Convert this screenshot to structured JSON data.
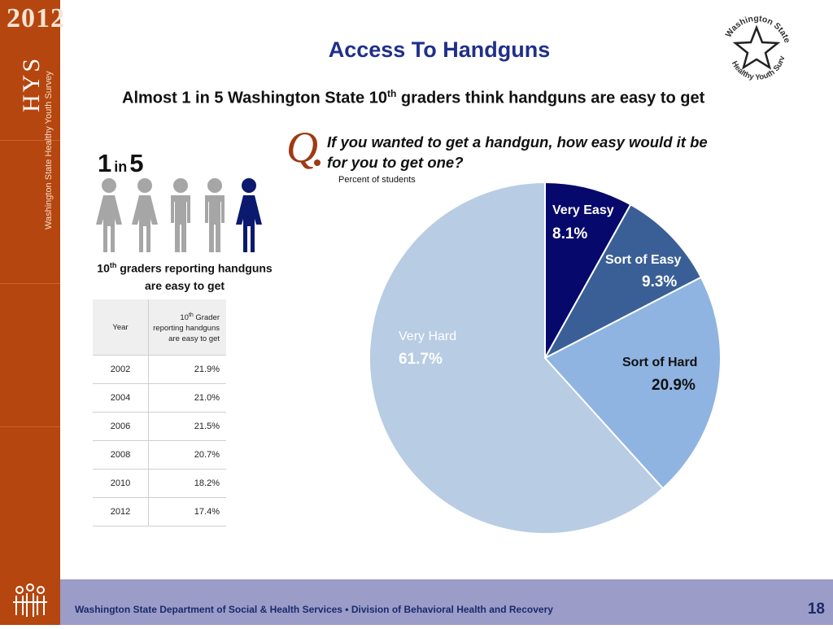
{
  "sidebar": {
    "year": "2012",
    "acronym": "HYS",
    "survey_name": "Washington State Healthy Youth Survey"
  },
  "title": "Access To Handguns",
  "subtitle": {
    "before": "Almost 1 in 5 Washington State 10",
    "sup": "th",
    "after": " graders think handguns are easy to get"
  },
  "question": {
    "mark": "Q",
    "text": "If you wanted to get a handgun, how easy would it be for you to get one?",
    "note": "Percent of students"
  },
  "infographic": {
    "one": "1",
    "in": "in",
    "five": "5",
    "caption_num": "10",
    "caption_sup": "th",
    "caption_rest": " graders reporting handguns are easy to get",
    "colors": {
      "gray": "#a6a6a6",
      "highlight": "#0b1a6e"
    }
  },
  "table": {
    "col_year": "Year",
    "col_value_pre": "10",
    "col_value_sup": "th",
    "col_value_rest": " Grader reporting handguns are easy to get",
    "rows": [
      {
        "year": "2002",
        "value": "21.9%"
      },
      {
        "year": "2004",
        "value": "21.0%"
      },
      {
        "year": "2006",
        "value": "21.5%"
      },
      {
        "year": "2008",
        "value": "20.7%"
      },
      {
        "year": "2010",
        "value": "18.2%"
      },
      {
        "year": "2012",
        "value": "17.4%"
      }
    ]
  },
  "badge": {
    "line1": "Washington State",
    "line2": "Healthy Youth Survey"
  },
  "chart_data": {
    "type": "pie",
    "slices": [
      {
        "label": "Very Easy",
        "value": 8.1,
        "display": "8.1%",
        "color": "#06086b"
      },
      {
        "label": "Sort of Easy",
        "value": 9.3,
        "display": "9.3%",
        "color": "#3a5f96"
      },
      {
        "label": "Sort of Hard",
        "value": 20.9,
        "display": "20.9%",
        "color": "#8fb4e2"
      },
      {
        "label": "Very Hard",
        "value": 61.7,
        "display": "61.7%",
        "color": "#b8cce4"
      }
    ]
  },
  "footer": {
    "text": "Washington State Department of Social & Health Services • Division of Behavioral Health and Recovery",
    "page": "18"
  }
}
